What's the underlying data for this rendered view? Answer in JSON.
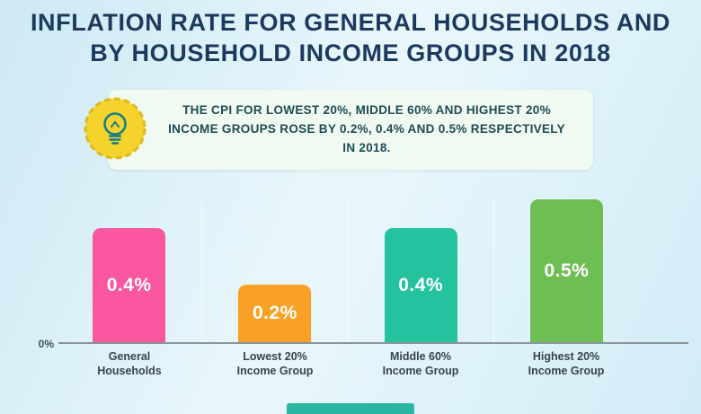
{
  "title": {
    "line1": "INFLATION RATE FOR GENERAL HOUSEHOLDS AND",
    "line2": "BY HOUSEHOLD INCOME GROUPS IN 2018"
  },
  "callout": {
    "icon": "lightbulb-icon",
    "text": "THE CPI FOR LOWEST 20%, MIDDLE 60% AND HIGHEST 20% INCOME GROUPS ROSE BY 0.2%, 0.4% AND 0.5% RESPECTIVELY IN 2018."
  },
  "chart_data": {
    "type": "bar",
    "title": "INFLATION RATE FOR GENERAL HOUSEHOLDS AND BY HOUSEHOLD INCOME GROUPS IN 2018",
    "categories": [
      "General Households",
      "Lowest 20% Income Group",
      "Middle 60% Income Group",
      "Highest 20% Income Group"
    ],
    "values": [
      0.4,
      0.2,
      0.4,
      0.5
    ],
    "value_labels": [
      "0.4%",
      "0.2%",
      "0.4%",
      "0.5%"
    ],
    "unit": "%",
    "bar_colors": [
      "#F9579F",
      "#F9A126",
      "#25C2A0",
      "#6FBE54"
    ],
    "y_ticks": [
      "0%"
    ],
    "ylim": [
      0,
      0.55
    ],
    "xlabel": "",
    "ylabel": "",
    "grid": false,
    "legend": false
  },
  "colors": {
    "title_text": "#1B3A5E",
    "background_start": "#CDE9F5",
    "background_end": "#E9F7FB",
    "callout_bg": "#F0FAF1",
    "callout_text": "#1E4B57",
    "bulb_yellow": "#F5D32C",
    "bulb_outline": "#177E8A",
    "axis": "#8A959C",
    "footer_accent": "#2BB5A3"
  }
}
